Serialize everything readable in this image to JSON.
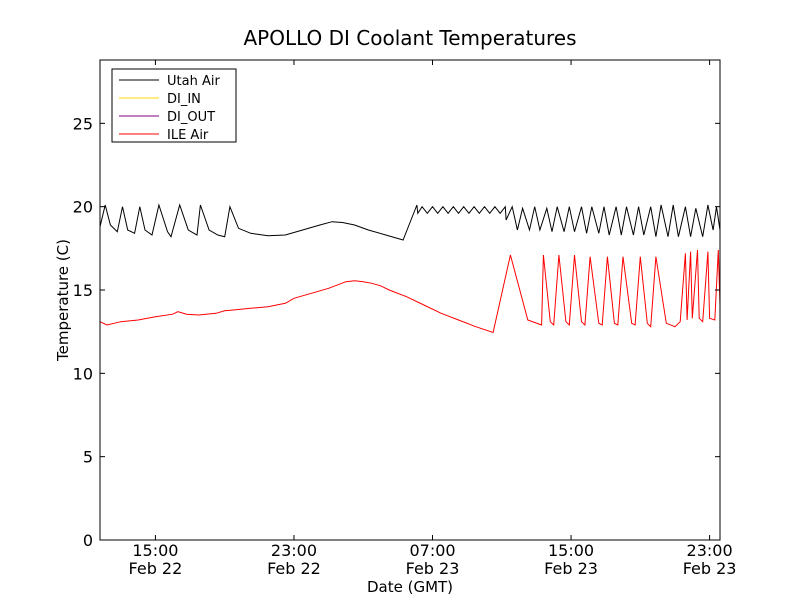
{
  "chart_data": {
    "type": "line",
    "title": "APOLLO DI Coolant Temperatures",
    "xlabel": "Date (GMT)",
    "ylabel": "Temperature (C)",
    "x_unit": "hours since Feb 22 00:00 GMT",
    "xlim": [
      11.8,
      47.6
    ],
    "ylim": [
      0,
      28.8
    ],
    "grid": false,
    "legend_position": "top-left",
    "y_ticks": [
      {
        "value": 0,
        "label": "0"
      },
      {
        "value": 5,
        "label": "5"
      },
      {
        "value": 10,
        "label": "10"
      },
      {
        "value": 15,
        "label": "15"
      },
      {
        "value": 20,
        "label": "20"
      },
      {
        "value": 25,
        "label": "25"
      }
    ],
    "x_ticks": [
      {
        "value": 15,
        "label": "15:00",
        "sublabel": "Feb 22"
      },
      {
        "value": 23,
        "label": "23:00",
        "sublabel": "Feb 22"
      },
      {
        "value": 31,
        "label": "07:00",
        "sublabel": "Feb 23"
      },
      {
        "value": 39,
        "label": "15:00",
        "sublabel": "Feb 23"
      },
      {
        "value": 47,
        "label": "23:00",
        "sublabel": "Feb 23"
      }
    ],
    "series": [
      {
        "name": "Utah Air",
        "color": "#000000",
        "x": [
          11.8,
          12.1,
          12.4,
          12.8,
          13.1,
          13.4,
          13.8,
          14.1,
          14.4,
          14.8,
          15.2,
          15.7,
          15.9,
          16.4,
          16.9,
          17.4,
          17.6,
          18.1,
          18.6,
          19.0,
          19.3,
          19.8,
          20.5,
          21.5,
          22.5,
          23.5,
          24.5,
          25.2,
          25.8,
          26.5,
          27.3,
          28.3,
          29.3,
          30.1,
          30.15,
          30.4,
          30.7,
          31.0,
          31.3,
          31.6,
          31.9,
          32.2,
          32.5,
          32.8,
          33.1,
          33.4,
          33.7,
          34.0,
          34.3,
          34.6,
          34.9,
          35.2,
          35.25,
          35.6,
          35.9,
          36.2,
          36.6,
          36.9,
          37.2,
          37.6,
          37.9,
          38.2,
          38.6,
          38.9,
          39.2,
          39.6,
          39.9,
          40.2,
          40.6,
          40.9,
          41.2,
          41.6,
          41.9,
          42.2,
          42.6,
          42.9,
          43.2,
          43.6,
          43.9,
          44.2,
          44.6,
          44.9,
          45.2,
          45.6,
          45.9,
          46.2,
          46.6,
          46.9,
          47.2,
          47.4,
          47.6
        ],
        "values": [
          18.8,
          20.1,
          18.9,
          18.5,
          20.0,
          18.6,
          18.4,
          20.0,
          18.6,
          18.3,
          20.1,
          18.5,
          18.2,
          20.1,
          18.6,
          18.3,
          20.1,
          18.6,
          18.3,
          18.2,
          20.0,
          18.7,
          18.4,
          18.25,
          18.3,
          18.6,
          18.9,
          19.1,
          19.05,
          18.9,
          18.6,
          18.3,
          18.0,
          20.1,
          19.6,
          20.0,
          19.6,
          20.0,
          19.6,
          20.0,
          19.6,
          20.0,
          19.6,
          20.0,
          19.6,
          20.0,
          19.6,
          20.0,
          19.6,
          20.0,
          19.6,
          20.0,
          19.2,
          20.0,
          18.6,
          19.9,
          18.6,
          20.0,
          18.6,
          19.9,
          18.5,
          20.0,
          18.5,
          20.0,
          18.5,
          20.0,
          18.4,
          20.0,
          18.4,
          20.0,
          18.3,
          20.0,
          18.3,
          20.0,
          18.3,
          20.0,
          18.3,
          20.0,
          18.2,
          20.1,
          18.2,
          20.1,
          18.2,
          20.0,
          18.2,
          19.9,
          18.2,
          20.1,
          18.6,
          20.0,
          18.6
        ]
      },
      {
        "name": "DI_IN",
        "color": "#ffd700",
        "x": [],
        "values": []
      },
      {
        "name": "DI_OUT",
        "color": "#800080",
        "x": [],
        "values": []
      },
      {
        "name": "ILE Air",
        "color": "#ff0000",
        "x": [
          11.8,
          12.2,
          13.0,
          14.0,
          15.0,
          16.0,
          16.3,
          16.8,
          17.5,
          18.5,
          19.0,
          19.5,
          20.5,
          21.5,
          22.5,
          23.0,
          24.0,
          25.0,
          26.0,
          26.5,
          27.0,
          27.5,
          28.0,
          28.5,
          29.5,
          30.5,
          31.5,
          32.5,
          33.5,
          34.5,
          35.5,
          36.5,
          37.3,
          37.4,
          37.8,
          38.0,
          38.3,
          38.7,
          38.9,
          39.2,
          39.6,
          39.8,
          40.1,
          40.6,
          40.8,
          41.1,
          41.5,
          41.7,
          42.0,
          42.5,
          42.7,
          43.0,
          43.4,
          43.6,
          43.9,
          44.5,
          45.0,
          45.3,
          45.6,
          45.7,
          45.9,
          46.0,
          46.3,
          46.4,
          46.6,
          46.9,
          47.0,
          47.3,
          47.5,
          47.6
        ],
        "values": [
          13.1,
          12.9,
          13.1,
          13.2,
          13.4,
          13.55,
          13.7,
          13.55,
          13.5,
          13.6,
          13.75,
          13.8,
          13.9,
          14.0,
          14.2,
          14.5,
          14.8,
          15.1,
          15.5,
          15.55,
          15.5,
          15.4,
          15.25,
          15.0,
          14.6,
          14.1,
          13.6,
          13.2,
          12.8,
          12.45,
          17.1,
          13.2,
          12.9,
          17.1,
          13.1,
          12.9,
          17.1,
          13.1,
          12.9,
          17.1,
          13.1,
          12.9,
          17.0,
          13.0,
          12.9,
          17.0,
          13.0,
          12.9,
          17.0,
          13.0,
          12.9,
          17.0,
          13.0,
          12.8,
          17.0,
          13.0,
          12.8,
          13.1,
          17.2,
          13.2,
          17.3,
          13.3,
          17.4,
          13.3,
          13.1,
          17.3,
          13.3,
          13.2,
          17.4,
          14.1
        ]
      }
    ]
  }
}
